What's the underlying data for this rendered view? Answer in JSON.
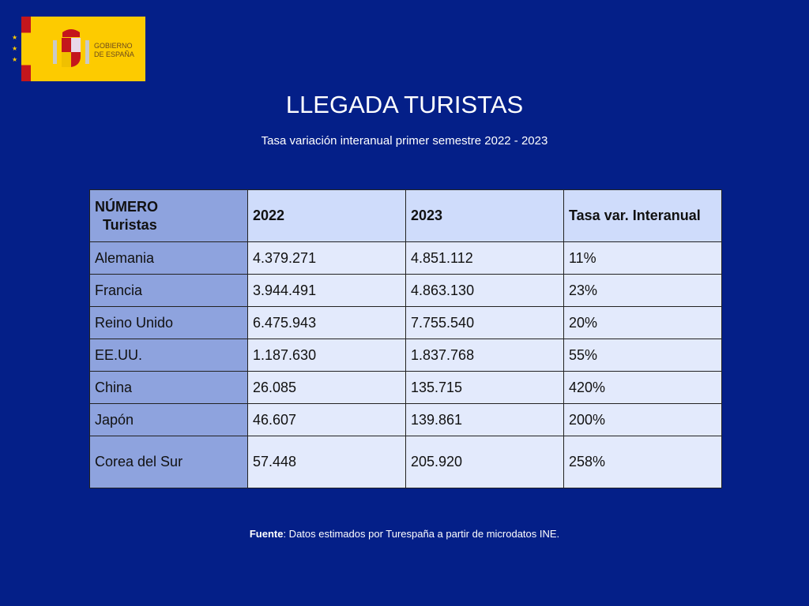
{
  "logo": {
    "text_line1": "GOBIERNO",
    "text_line2": "DE ESPAÑA"
  },
  "title": "LLEGADA TURISTAS",
  "subtitle": "Tasa variación interanual primer semestre 2022 - 2023",
  "table": {
    "headers": [
      "NÚMERO",
      "Turistas",
      "2022",
      "2023",
      "Tasa var. Interanual"
    ],
    "rows": [
      [
        "Alemania",
        "4.379.271",
        "4.851.112",
        "11%"
      ],
      [
        "Francia",
        "3.944.491",
        "4.863.130",
        "23%"
      ],
      [
        "Reino Unido",
        "6.475.943",
        "7.755.540",
        "20%"
      ],
      [
        "EE.UU.",
        "1.187.630",
        "1.837.768",
        "55%"
      ],
      [
        "China",
        "26.085",
        "135.715",
        "420%"
      ],
      [
        "Japón",
        "46.607",
        "139.861",
        "200%"
      ],
      [
        "Corea del Sur",
        "57.448",
        "205.920",
        "258%"
      ]
    ]
  },
  "footer": {
    "label": "Fuente",
    "text": ": Datos estimados por Turespaña a partir de microdatos INE."
  }
}
